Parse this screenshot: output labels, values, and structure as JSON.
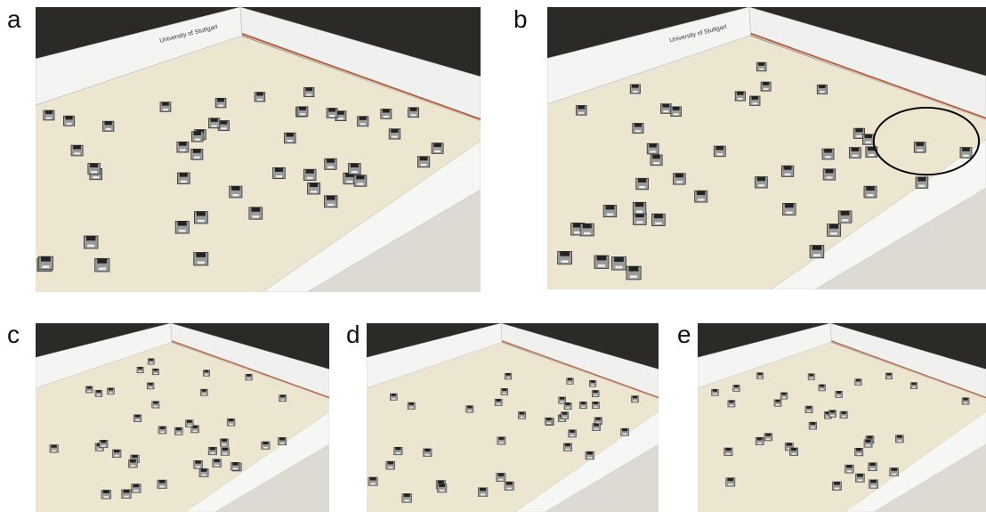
{
  "panels": [
    {
      "label": "a",
      "wall_text": "University of Stuttgart"
    },
    {
      "label": "b",
      "wall_text": "University of Stuttgart"
    },
    {
      "label": "c"
    },
    {
      "label": "d"
    },
    {
      "label": "e"
    }
  ]
}
